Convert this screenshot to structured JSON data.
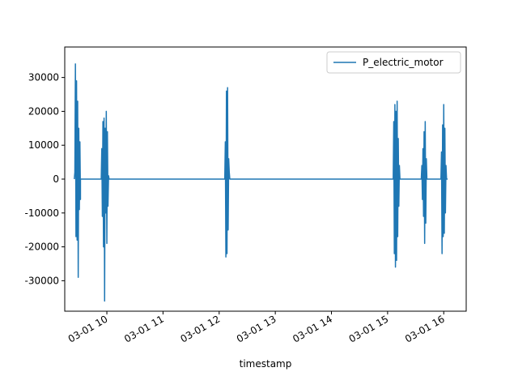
{
  "chart_data": {
    "type": "line",
    "title": "",
    "xlabel": "timestamp",
    "ylabel": "",
    "x_tick_labels": [
      "03-01 10",
      "03-01 11",
      "03-01 12",
      "03-01 13",
      "03-01 14",
      "03-01 15",
      "03-01 16"
    ],
    "x_ticks_hours": [
      10,
      11,
      12,
      13,
      14,
      15,
      16
    ],
    "y_ticks": [
      -30000,
      -20000,
      -10000,
      0,
      10000,
      20000,
      30000
    ],
    "xlim_hours": [
      9.25,
      16.4
    ],
    "ylim": [
      -39000,
      39000
    ],
    "grid": false,
    "legend_position": "top-right",
    "series": [
      {
        "name": "P_electric_motor",
        "color": "#1f77b4",
        "x_hours": [
          9.42,
          9.43,
          9.44,
          9.45,
          9.46,
          9.47,
          9.48,
          9.49,
          9.5,
          9.51,
          9.52,
          9.53,
          9.53,
          9.58,
          9.9,
          9.91,
          9.92,
          9.93,
          9.94,
          9.95,
          9.96,
          9.97,
          9.98,
          9.99,
          10.0,
          10.01,
          10.02,
          10.03,
          10.04,
          10.05,
          10.06,
          10.07,
          10.08,
          11.5,
          12.1,
          12.11,
          12.12,
          12.13,
          12.14,
          12.15,
          12.16,
          12.17,
          12.18,
          12.19,
          12.2,
          12.5,
          14.9,
          15.08,
          15.1,
          15.11,
          15.12,
          15.13,
          15.14,
          15.15,
          15.16,
          15.17,
          15.18,
          15.19,
          15.2,
          15.21,
          15.22,
          15.23,
          15.24,
          15.25,
          15.3,
          15.5,
          15.6,
          15.61,
          15.62,
          15.63,
          15.64,
          15.65,
          15.66,
          15.67,
          15.68,
          15.69,
          15.7,
          15.75,
          15.95,
          15.96,
          15.97,
          15.98,
          15.99,
          16.0,
          16.01,
          16.02,
          16.03,
          16.04,
          16.05,
          16.06,
          16.07
        ],
        "y": [
          0,
          2000,
          34000,
          -17000,
          29000,
          -18000,
          23000,
          -29000,
          15000,
          -9000,
          11000,
          -6000,
          0,
          0,
          0,
          9000,
          -11000,
          17000,
          -20000,
          18000,
          -36000,
          15000,
          -10000,
          20000,
          -19000,
          14000,
          -8000,
          1000,
          0,
          0,
          0,
          0,
          0,
          0,
          0,
          11000,
          -23000,
          26000,
          -22000,
          27000,
          -15000,
          6000,
          2000,
          0,
          0,
          0,
          0,
          0,
          0,
          17000,
          -22000,
          22000,
          -26000,
          20000,
          -24000,
          23000,
          -17000,
          12000,
          -8000,
          4000,
          0,
          0,
          0,
          0,
          0,
          0,
          0,
          4000,
          -6000,
          9000,
          -11000,
          14000,
          -19000,
          17000,
          -13000,
          6000,
          0,
          0,
          0,
          8000,
          -22000,
          16000,
          -17000,
          22000,
          -16000,
          15000,
          -10000,
          4000,
          0,
          0,
          0
        ]
      }
    ]
  }
}
